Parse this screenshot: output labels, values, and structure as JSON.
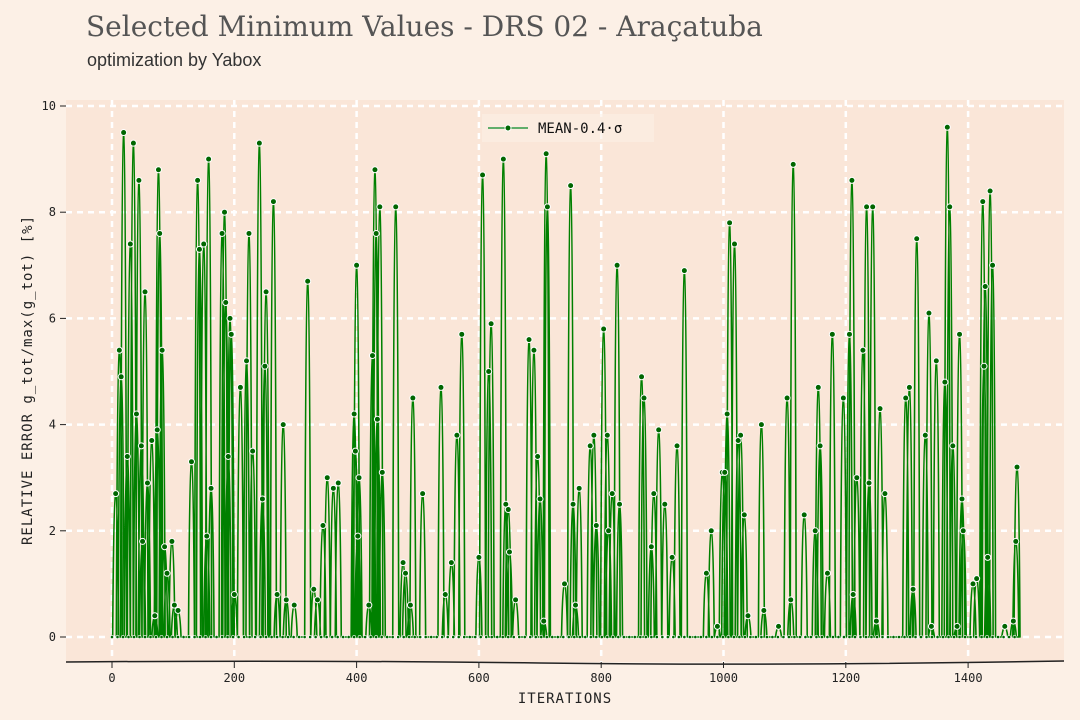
{
  "title": "Selected Minimum Values - DRS 02 - Araçatuba",
  "subtitle": "optimization by Yabox",
  "chart_data": {
    "type": "line",
    "xlabel": "ITERATIONS",
    "ylabel": "RELATIVE ERROR g_tot/max(g_tot) [%]",
    "xlim": [
      -75,
      1560
    ],
    "ylim": [
      -0.5,
      10
    ],
    "xticks": [
      0,
      200,
      400,
      600,
      800,
      1000,
      1200,
      1400
    ],
    "yticks": [
      0,
      2,
      4,
      6,
      8,
      10
    ],
    "grid": true,
    "legend_position": "top-center",
    "series": [
      {
        "name": "MEAN-0.4·σ",
        "color": "#008000",
        "x_start": 0,
        "x_end": 1484,
        "peaks": [
          [
            6,
            2.7
          ],
          [
            12,
            5.4
          ],
          [
            15,
            4.9
          ],
          [
            19,
            9.5
          ],
          [
            25,
            3.4
          ],
          [
            30,
            7.4
          ],
          [
            35,
            9.3
          ],
          [
            40,
            4.2
          ],
          [
            44,
            8.6
          ],
          [
            48,
            3.6
          ],
          [
            50,
            1.8
          ],
          [
            54,
            6.5
          ],
          [
            58,
            2.9
          ],
          [
            65,
            3.7
          ],
          [
            70,
            0.4
          ],
          [
            74,
            3.9
          ],
          [
            76,
            8.8
          ],
          [
            78,
            7.6
          ],
          [
            82,
            5.4
          ],
          [
            86,
            1.7
          ],
          [
            90,
            1.2
          ],
          [
            98,
            1.8
          ],
          [
            102,
            0.6
          ],
          [
            108,
            0.5
          ],
          [
            130,
            3.3
          ],
          [
            140,
            8.6
          ],
          [
            143,
            7.3
          ],
          [
            150,
            7.4
          ],
          [
            155,
            1.9
          ],
          [
            158,
            9.0
          ],
          [
            162,
            2.8
          ],
          [
            180,
            7.6
          ],
          [
            184,
            8.0
          ],
          [
            186,
            6.3
          ],
          [
            190,
            3.4
          ],
          [
            193,
            6.0
          ],
          [
            195,
            5.7
          ],
          [
            200,
            0.8
          ],
          [
            210,
            4.7
          ],
          [
            220,
            5.2
          ],
          [
            224,
            7.6
          ],
          [
            230,
            3.5
          ],
          [
            241,
            9.3
          ],
          [
            246,
            2.6
          ],
          [
            250,
            5.1
          ],
          [
            252,
            6.5
          ],
          [
            264,
            8.2
          ],
          [
            270,
            0.8
          ],
          [
            280,
            4.0
          ],
          [
            285,
            0.7
          ],
          [
            298,
            0.6
          ],
          [
            320,
            6.7
          ],
          [
            330,
            0.9
          ],
          [
            336,
            0.7
          ],
          [
            345,
            2.1
          ],
          [
            352,
            3.0
          ],
          [
            362,
            2.8
          ],
          [
            370,
            2.9
          ],
          [
            396,
            4.2
          ],
          [
            398,
            3.5
          ],
          [
            400,
            7.0
          ],
          [
            402,
            1.9
          ],
          [
            404,
            3.0
          ],
          [
            420,
            0.6
          ],
          [
            426,
            5.3
          ],
          [
            430,
            8.8
          ],
          [
            432,
            7.6
          ],
          [
            434,
            4.1
          ],
          [
            438,
            8.1
          ],
          [
            442,
            3.1
          ],
          [
            464,
            8.1
          ],
          [
            476,
            1.4
          ],
          [
            480,
            1.2
          ],
          [
            488,
            0.6
          ],
          [
            492,
            4.5
          ],
          [
            508,
            2.7
          ],
          [
            538,
            4.7
          ],
          [
            545,
            0.8
          ],
          [
            555,
            1.4
          ],
          [
            564,
            3.8
          ],
          [
            572,
            5.7
          ],
          [
            600,
            1.5
          ],
          [
            606,
            8.7
          ],
          [
            616,
            5.0
          ],
          [
            620,
            5.9
          ],
          [
            640,
            9.0
          ],
          [
            644,
            2.5
          ],
          [
            648,
            2.4
          ],
          [
            650,
            1.6
          ],
          [
            660,
            0.7
          ],
          [
            682,
            5.6
          ],
          [
            690,
            5.4
          ],
          [
            696,
            3.4
          ],
          [
            700,
            2.6
          ],
          [
            706,
            0.3
          ],
          [
            710,
            9.1
          ],
          [
            712,
            8.1
          ],
          [
            740,
            1.0
          ],
          [
            750,
            8.5
          ],
          [
            754,
            2.5
          ],
          [
            758,
            0.6
          ],
          [
            764,
            2.8
          ],
          [
            782,
            3.6
          ],
          [
            788,
            3.8
          ],
          [
            792,
            2.1
          ],
          [
            804,
            5.8
          ],
          [
            810,
            3.8
          ],
          [
            812,
            2.0
          ],
          [
            818,
            2.7
          ],
          [
            826,
            7.0
          ],
          [
            830,
            2.5
          ],
          [
            866,
            4.9
          ],
          [
            870,
            4.5
          ],
          [
            882,
            1.7
          ],
          [
            886,
            2.7
          ],
          [
            894,
            3.9
          ],
          [
            904,
            2.5
          ],
          [
            916,
            1.5
          ],
          [
            924,
            3.6
          ],
          [
            936,
            6.9
          ],
          [
            972,
            1.2
          ],
          [
            980,
            2.0
          ],
          [
            990,
            0.2
          ],
          [
            998,
            3.1
          ],
          [
            1002,
            3.1
          ],
          [
            1006,
            4.2
          ],
          [
            1010,
            7.8
          ],
          [
            1018,
            7.4
          ],
          [
            1024,
            3.7
          ],
          [
            1028,
            3.8
          ],
          [
            1034,
            2.3
          ],
          [
            1040,
            0.4
          ],
          [
            1062,
            4.0
          ],
          [
            1066,
            0.5
          ],
          [
            1090,
            0.2
          ],
          [
            1104,
            4.5
          ],
          [
            1110,
            0.7
          ],
          [
            1114,
            8.9
          ],
          [
            1132,
            2.3
          ],
          [
            1150,
            2.0
          ],
          [
            1155,
            4.7
          ],
          [
            1158,
            3.6
          ],
          [
            1170,
            1.2
          ],
          [
            1178,
            5.7
          ],
          [
            1196,
            4.5
          ],
          [
            1206,
            5.7
          ],
          [
            1210,
            8.6
          ],
          [
            1212,
            0.8
          ],
          [
            1218,
            3.0
          ],
          [
            1228,
            5.4
          ],
          [
            1234,
            8.1
          ],
          [
            1238,
            2.9
          ],
          [
            1244,
            8.1
          ],
          [
            1250,
            0.3
          ],
          [
            1256,
            4.3
          ],
          [
            1264,
            2.7
          ],
          [
            1298,
            4.5
          ],
          [
            1304,
            4.7
          ],
          [
            1310,
            0.9
          ],
          [
            1316,
            7.5
          ],
          [
            1330,
            3.8
          ],
          [
            1336,
            6.1
          ],
          [
            1340,
            0.2
          ],
          [
            1348,
            5.2
          ],
          [
            1362,
            4.8
          ],
          [
            1366,
            9.6
          ],
          [
            1370,
            8.1
          ],
          [
            1375,
            3.6
          ],
          [
            1382,
            0.2
          ],
          [
            1386,
            5.7
          ],
          [
            1390,
            2.6
          ],
          [
            1392,
            2.0
          ],
          [
            1408,
            1.0
          ],
          [
            1414,
            1.1
          ],
          [
            1424,
            8.2
          ],
          [
            1426,
            5.1
          ],
          [
            1428,
            6.6
          ],
          [
            1432,
            1.5
          ],
          [
            1436,
            8.4
          ],
          [
            1440,
            7.0
          ],
          [
            1460,
            0.2
          ],
          [
            1474,
            0.3
          ],
          [
            1478,
            1.8
          ],
          [
            1480,
            3.2
          ]
        ]
      }
    ]
  }
}
